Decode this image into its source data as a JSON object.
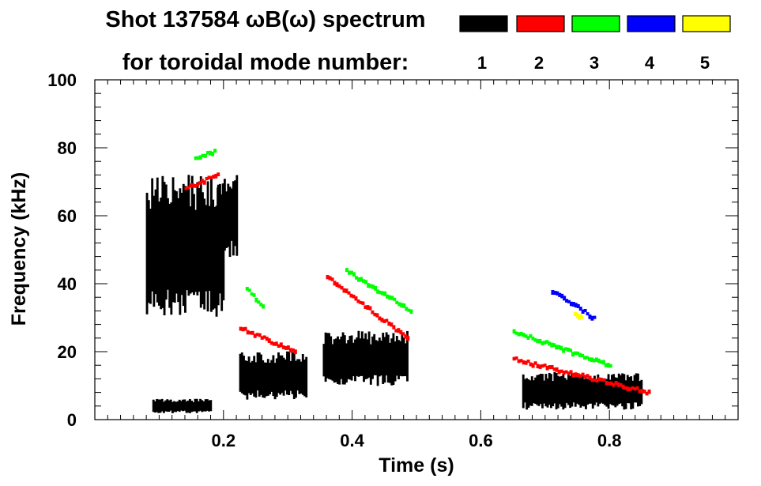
{
  "title_line1": "Shot 137584 ωB(ω) spectrum",
  "title_line2": "for toroidal mode number:",
  "legend": [
    {
      "label": "1",
      "color": "#000000"
    },
    {
      "label": "2",
      "color": "#ff0000"
    },
    {
      "label": "3",
      "color": "#00ff00"
    },
    {
      "label": "4",
      "color": "#0000ff"
    },
    {
      "label": "5",
      "color": "#ffff00"
    }
  ],
  "chart_data": {
    "type": "heatmap",
    "title": "Shot 137584 ωB(ω) spectrum",
    "xlabel": "Time (s)",
    "ylabel": "Frequency (kHz)",
    "xlim": [
      0.0,
      1.0
    ],
    "ylim": [
      0,
      100
    ],
    "xticks": [
      0.2,
      0.4,
      0.6,
      0.8
    ],
    "xtick_labels": [
      "0.2",
      "0.4",
      "0.6",
      "0.8"
    ],
    "yticks": [
      0,
      20,
      40,
      60,
      80,
      100
    ],
    "ytick_labels": [
      "0",
      "20",
      "40",
      "60",
      "80",
      "100"
    ],
    "series": [
      {
        "name": "n=1",
        "color": "#000000",
        "segments": [
          {
            "t": [
              0.08,
              0.2
            ],
            "f": [
              30,
              72
            ],
            "kind": "band"
          },
          {
            "t": [
              0.19,
              0.22
            ],
            "f": [
              48,
              72
            ],
            "kind": "band"
          },
          {
            "t": [
              0.09,
              0.18
            ],
            "f": [
              2,
              6
            ],
            "kind": "band"
          },
          {
            "t": [
              0.225,
              0.33
            ],
            "f": [
              6,
              20
            ],
            "kind": "band"
          },
          {
            "t": [
              0.355,
              0.485
            ],
            "f": [
              10,
              26
            ],
            "kind": "band"
          },
          {
            "t": [
              0.665,
              0.85
            ],
            "f": [
              3,
              14
            ],
            "kind": "band"
          }
        ]
      },
      {
        "name": "n=2",
        "color": "#ff0000",
        "segments": [
          {
            "t": [
              0.14,
              0.19
            ],
            "f": [
              68,
              72
            ],
            "kind": "line"
          },
          {
            "t": [
              0.225,
              0.31
            ],
            "f": [
              27,
              20
            ],
            "kind": "line"
          },
          {
            "t": [
              0.36,
              0.485
            ],
            "f": [
              42,
              24
            ],
            "kind": "line"
          },
          {
            "t": [
              0.65,
              0.86
            ],
            "f": [
              18,
              8
            ],
            "kind": "line"
          }
        ]
      },
      {
        "name": "n=3",
        "color": "#00ff00",
        "segments": [
          {
            "t": [
              0.155,
              0.185
            ],
            "f": [
              77,
              79
            ],
            "kind": "line"
          },
          {
            "t": [
              0.235,
              0.26
            ],
            "f": [
              39,
              33
            ],
            "kind": "line"
          },
          {
            "t": [
              0.39,
              0.49
            ],
            "f": [
              44,
              32
            ],
            "kind": "line"
          },
          {
            "t": [
              0.65,
              0.8
            ],
            "f": [
              26,
              16
            ],
            "kind": "line"
          }
        ]
      },
      {
        "name": "n=4",
        "color": "#0000ff",
        "segments": [
          {
            "t": [
              0.71,
              0.775
            ],
            "f": [
              38,
              30
            ],
            "kind": "line"
          }
        ]
      },
      {
        "name": "n=5",
        "color": "#ffff00",
        "segments": [
          {
            "t": [
              0.745,
              0.755
            ],
            "f": [
              31,
              30
            ],
            "kind": "line"
          }
        ]
      }
    ]
  }
}
